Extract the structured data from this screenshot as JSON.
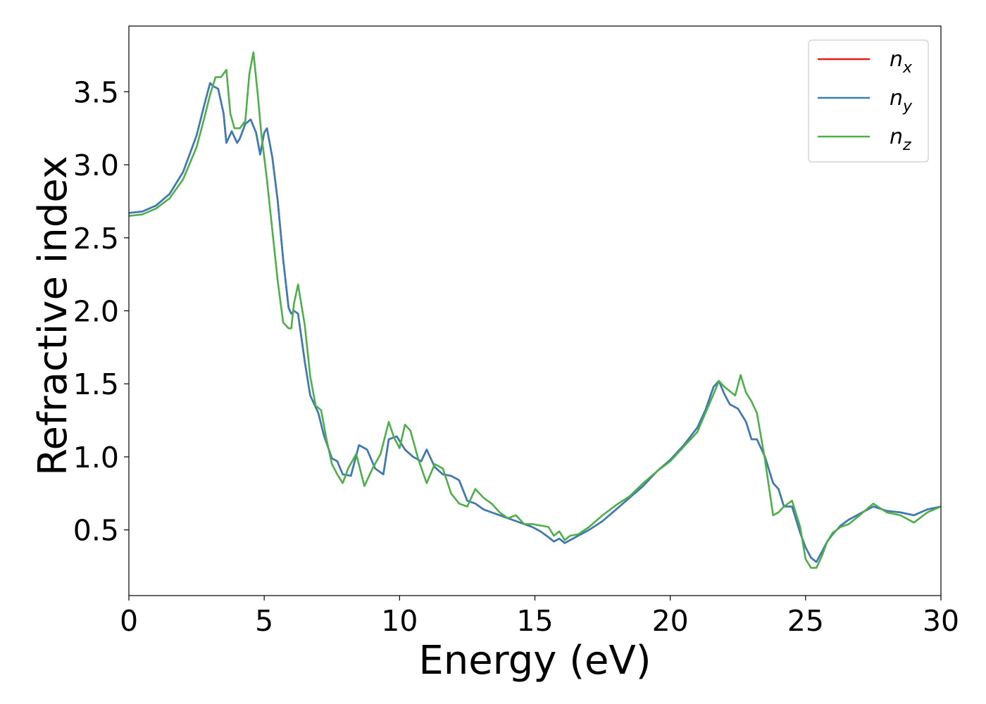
{
  "chart_data": {
    "type": "line",
    "xlabel": "Energy (eV)",
    "ylabel": "Refractive index",
    "xlim": [
      0,
      30
    ],
    "ylim": [
      0.05,
      3.95
    ],
    "xticks": [
      0,
      5,
      10,
      15,
      20,
      25,
      30
    ],
    "xtick_labels": [
      "0",
      "5",
      "10",
      "15",
      "20",
      "25",
      "30"
    ],
    "yticks": [
      0.5,
      1.0,
      1.5,
      2.0,
      2.5,
      3.0,
      3.5
    ],
    "ytick_labels": [
      "0.5",
      "1.0",
      "1.5",
      "2.0",
      "2.5",
      "3.0",
      "3.5"
    ],
    "grid": false,
    "legend_position": "top-right",
    "series": [
      {
        "name": "n_x",
        "label_main": "n",
        "label_sub": "x",
        "color": "#e41a1c",
        "x": [
          0,
          0.5,
          1,
          1.5,
          2,
          2.5,
          2.8,
          3.0,
          3.1,
          3.3,
          3.5,
          3.6,
          3.8,
          4.0,
          4.1,
          4.3,
          4.5,
          4.7,
          4.85,
          5.0,
          5.1,
          5.3,
          5.5,
          5.7,
          5.9,
          6.0,
          6.1,
          6.25,
          6.5,
          6.7,
          7.0,
          7.2,
          7.5,
          7.7,
          7.9,
          8.2,
          8.5,
          8.8,
          9.1,
          9.4,
          9.6,
          9.9,
          10.2,
          10.5,
          10.8,
          11.0,
          11.3,
          11.6,
          11.9,
          12.2,
          12.5,
          12.8,
          13.1,
          13.4,
          13.7,
          14.0,
          14.3,
          14.6,
          14.9,
          15.2,
          15.5,
          15.7,
          15.9,
          16.1,
          16.3,
          16.6,
          17.0,
          17.5,
          18.0,
          18.5,
          19.0,
          19.5,
          20.0,
          20.5,
          21.0,
          21.3,
          21.6,
          21.8,
          22.0,
          22.2,
          22.5,
          22.8,
          23.0,
          23.2,
          23.5,
          23.8,
          24.0,
          24.2,
          24.5,
          24.8,
          25.0,
          25.2,
          25.4,
          25.6,
          25.8,
          26.0,
          26.3,
          26.6,
          27.0,
          27.5,
          28.0,
          28.5,
          29.0,
          29.5,
          30.0
        ],
        "y": [
          2.67,
          2.68,
          2.72,
          2.8,
          2.95,
          3.2,
          3.42,
          3.56,
          3.54,
          3.52,
          3.35,
          3.15,
          3.23,
          3.15,
          3.18,
          3.28,
          3.31,
          3.22,
          3.07,
          3.22,
          3.25,
          3.05,
          2.75,
          2.35,
          2.02,
          1.98,
          2.0,
          1.98,
          1.65,
          1.42,
          1.3,
          1.15,
          0.99,
          0.97,
          0.88,
          0.87,
          1.08,
          1.05,
          0.92,
          0.88,
          1.12,
          1.14,
          1.05,
          1.0,
          0.97,
          1.05,
          0.93,
          0.88,
          0.87,
          0.84,
          0.7,
          0.68,
          0.64,
          0.62,
          0.6,
          0.58,
          0.56,
          0.54,
          0.52,
          0.49,
          0.45,
          0.42,
          0.44,
          0.41,
          0.43,
          0.46,
          0.5,
          0.56,
          0.64,
          0.72,
          0.8,
          0.9,
          0.98,
          1.08,
          1.2,
          1.32,
          1.48,
          1.52,
          1.43,
          1.36,
          1.33,
          1.24,
          1.12,
          1.12,
          1.0,
          0.82,
          0.78,
          0.66,
          0.66,
          0.48,
          0.38,
          0.31,
          0.28,
          0.35,
          0.42,
          0.47,
          0.53,
          0.57,
          0.61,
          0.66,
          0.63,
          0.62,
          0.6,
          0.64,
          0.66
        ]
      },
      {
        "name": "n_y",
        "label_main": "n",
        "label_sub": "y",
        "color": "#377eb8",
        "x": [
          0,
          0.5,
          1,
          1.5,
          2,
          2.5,
          2.8,
          3.0,
          3.1,
          3.3,
          3.5,
          3.6,
          3.8,
          4.0,
          4.1,
          4.3,
          4.5,
          4.7,
          4.85,
          5.0,
          5.1,
          5.3,
          5.5,
          5.7,
          5.9,
          6.0,
          6.1,
          6.25,
          6.5,
          6.7,
          7.0,
          7.2,
          7.5,
          7.7,
          7.9,
          8.2,
          8.5,
          8.8,
          9.1,
          9.4,
          9.6,
          9.9,
          10.2,
          10.5,
          10.8,
          11.0,
          11.3,
          11.6,
          11.9,
          12.2,
          12.5,
          12.8,
          13.1,
          13.4,
          13.7,
          14.0,
          14.3,
          14.6,
          14.9,
          15.2,
          15.5,
          15.7,
          15.9,
          16.1,
          16.3,
          16.6,
          17.0,
          17.5,
          18.0,
          18.5,
          19.0,
          19.5,
          20.0,
          20.5,
          21.0,
          21.3,
          21.6,
          21.8,
          22.0,
          22.2,
          22.5,
          22.8,
          23.0,
          23.2,
          23.5,
          23.8,
          24.0,
          24.2,
          24.5,
          24.8,
          25.0,
          25.2,
          25.4,
          25.6,
          25.8,
          26.0,
          26.3,
          26.6,
          27.0,
          27.5,
          28.0,
          28.5,
          29.0,
          29.5,
          30.0
        ],
        "y": [
          2.67,
          2.68,
          2.72,
          2.8,
          2.95,
          3.2,
          3.42,
          3.56,
          3.54,
          3.52,
          3.35,
          3.15,
          3.23,
          3.15,
          3.18,
          3.28,
          3.31,
          3.22,
          3.07,
          3.22,
          3.25,
          3.05,
          2.75,
          2.35,
          2.02,
          1.98,
          2.0,
          1.98,
          1.65,
          1.42,
          1.3,
          1.15,
          0.99,
          0.97,
          0.88,
          0.87,
          1.08,
          1.05,
          0.92,
          0.88,
          1.12,
          1.14,
          1.05,
          1.0,
          0.97,
          1.05,
          0.93,
          0.88,
          0.87,
          0.84,
          0.7,
          0.68,
          0.64,
          0.62,
          0.6,
          0.58,
          0.56,
          0.54,
          0.52,
          0.49,
          0.45,
          0.42,
          0.44,
          0.41,
          0.43,
          0.46,
          0.5,
          0.56,
          0.64,
          0.72,
          0.8,
          0.9,
          0.98,
          1.08,
          1.2,
          1.32,
          1.48,
          1.52,
          1.43,
          1.36,
          1.33,
          1.24,
          1.12,
          1.12,
          1.0,
          0.82,
          0.78,
          0.66,
          0.66,
          0.48,
          0.38,
          0.31,
          0.28,
          0.35,
          0.42,
          0.47,
          0.53,
          0.57,
          0.61,
          0.66,
          0.63,
          0.62,
          0.6,
          0.64,
          0.66
        ]
      },
      {
        "name": "n_z",
        "label_main": "n",
        "label_sub": "z",
        "color": "#4daf4a",
        "x": [
          0,
          0.5,
          1,
          1.5,
          2,
          2.5,
          2.8,
          3.0,
          3.2,
          3.4,
          3.6,
          3.75,
          3.9,
          4.1,
          4.3,
          4.45,
          4.6,
          4.75,
          4.9,
          5.0,
          5.1,
          5.3,
          5.5,
          5.7,
          5.9,
          6.0,
          6.1,
          6.25,
          6.5,
          6.7,
          6.9,
          7.1,
          7.3,
          7.5,
          7.7,
          7.9,
          8.1,
          8.4,
          8.7,
          9.0,
          9.3,
          9.6,
          9.8,
          10.0,
          10.2,
          10.4,
          10.7,
          11.0,
          11.3,
          11.6,
          11.9,
          12.2,
          12.5,
          12.8,
          13.1,
          13.4,
          13.7,
          14.0,
          14.3,
          14.6,
          14.9,
          15.2,
          15.5,
          15.7,
          15.9,
          16.1,
          16.3,
          16.6,
          17.0,
          17.5,
          18.0,
          18.5,
          19.0,
          19.5,
          20.0,
          20.5,
          21.0,
          21.3,
          21.6,
          21.8,
          22.0,
          22.2,
          22.4,
          22.6,
          22.8,
          23.0,
          23.2,
          23.5,
          23.8,
          24.0,
          24.2,
          24.5,
          24.8,
          25.0,
          25.2,
          25.4,
          25.6,
          25.8,
          26.0,
          26.3,
          26.6,
          27.0,
          27.5,
          28.0,
          28.5,
          29.0,
          29.5,
          30.0
        ],
        "y": [
          2.65,
          2.66,
          2.7,
          2.77,
          2.9,
          3.12,
          3.33,
          3.48,
          3.6,
          3.6,
          3.65,
          3.35,
          3.25,
          3.25,
          3.3,
          3.62,
          3.77,
          3.5,
          3.2,
          3.05,
          2.9,
          2.55,
          2.2,
          1.92,
          1.88,
          1.88,
          2.05,
          2.18,
          1.9,
          1.55,
          1.35,
          1.32,
          1.12,
          0.95,
          0.88,
          0.82,
          0.92,
          1.02,
          0.8,
          0.92,
          1.02,
          1.24,
          1.13,
          1.06,
          1.22,
          1.18,
          0.98,
          0.82,
          0.95,
          0.92,
          0.75,
          0.68,
          0.66,
          0.78,
          0.72,
          0.68,
          0.62,
          0.58,
          0.6,
          0.54,
          0.54,
          0.53,
          0.52,
          0.46,
          0.49,
          0.43,
          0.46,
          0.47,
          0.52,
          0.6,
          0.67,
          0.73,
          0.82,
          0.9,
          0.97,
          1.07,
          1.17,
          1.3,
          1.43,
          1.52,
          1.48,
          1.45,
          1.42,
          1.56,
          1.44,
          1.38,
          1.3,
          0.98,
          0.6,
          0.62,
          0.66,
          0.7,
          0.52,
          0.3,
          0.24,
          0.24,
          0.32,
          0.42,
          0.48,
          0.52,
          0.54,
          0.6,
          0.68,
          0.62,
          0.6,
          0.55,
          0.62,
          0.66
        ]
      }
    ]
  }
}
